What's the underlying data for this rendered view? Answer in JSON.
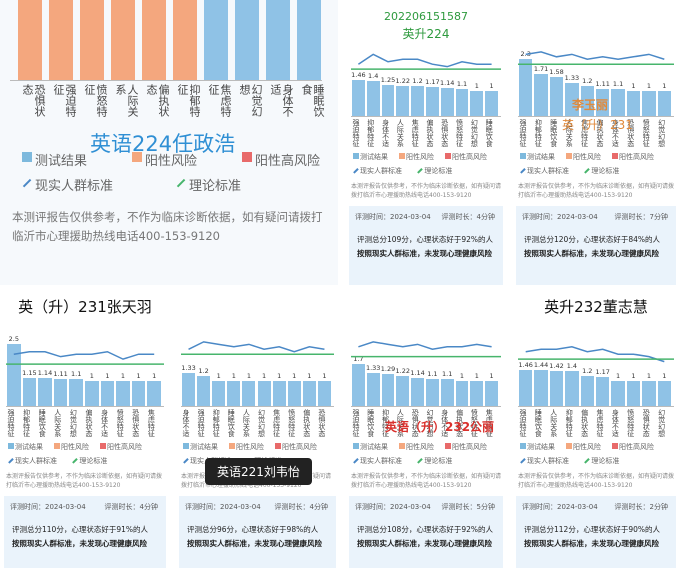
{
  "legend": {
    "result": "测试结果",
    "risk": "阳性风险",
    "high_risk": "阳性高风险",
    "real_norm": "现实人群标准",
    "theory_norm": "理论标准"
  },
  "note": "本测评报告仅供参考，不作为临床诊断依据，如有疑问请拨打临沂市心理援助热线电话400-153-9120",
  "time_label": "评测时间：2024-03-04",
  "no_risk": "按照现实人群标准，未发现心理健康风险",
  "main": {
    "overlay": "英语224任政浩",
    "categories": [
      "恐惧状态",
      "强迫特征",
      "愤怒特征",
      "人际关系",
      "偏执状态",
      "抑郁特征",
      "焦虑特征",
      "幻觉幻想",
      "身体不适",
      "睡眠饮食"
    ]
  },
  "panels": [
    {
      "title": "202206151587",
      "subtitle": "英升224",
      "ylim": [
        0,
        3
      ],
      "categories": [
        "强迫特征",
        "抑郁特征",
        "身体不适",
        "人际关系",
        "焦虑特征",
        "偏执状态",
        "恐惧状态",
        "愤怒特征",
        "幻觉幻想",
        "睡眠饮食"
      ],
      "values": [
        1.46,
        1.4,
        1.25,
        1.22,
        1.2,
        1.17,
        1.14,
        1.1,
        1,
        1
      ],
      "real_norm": [
        2.1,
        2.5,
        2.2,
        2.3,
        2.3,
        2.1,
        2.0,
        2.2,
        2.1,
        2.1
      ],
      "theory_norm": 1.9,
      "duration": "评测时长：4分钟",
      "summary": "评测总分109分，心理状态好于92%的人"
    },
    {
      "overlay": "李玉丽",
      "overlay2": "英（升）231",
      "ylim": [
        0,
        3
      ],
      "categories": [
        "强迫特征",
        "抑郁特征",
        "睡眠饮食",
        "人际关系",
        "焦虑特征",
        "偏执状态",
        "身体不适",
        "恐惧状态",
        "愤怒特征",
        "幻觉幻想"
      ],
      "values": [
        2.3,
        1.71,
        1.58,
        1.33,
        1.2,
        1.11,
        1.1,
        1,
        1,
        1
      ],
      "real_norm": [
        2.5,
        2.6,
        2.4,
        2.5,
        2.3,
        2.4,
        2.3,
        2.4,
        2.5,
        2.3
      ],
      "theory_norm": 2.1,
      "duration": "评测时长：7分钟",
      "summary": "评测总分120分，心理状态好于84%的人"
    },
    {
      "title": "英（升）231张天羽",
      "ylim": [
        0,
        3
      ],
      "categories": [
        "强迫特征",
        "抑郁特征",
        "睡眠饮食",
        "人际关系",
        "幻觉幻想",
        "偏执状态",
        "身体不适",
        "愤怒特征",
        "恐惧状态",
        "焦虑特征"
      ],
      "values": [
        2.5,
        1.15,
        1.14,
        1.11,
        1.1,
        1,
        1,
        1,
        1,
        1
      ],
      "real_norm": [
        2.1,
        2.2,
        2.2,
        2.0,
        2.1,
        2.1,
        2.2,
        1.9,
        2.1,
        2.1
      ],
      "theory_norm": 1.7,
      "duration": "评测时长：4分钟",
      "summary": "评测总分110分，心理状态好于91%的人"
    },
    {
      "tooltip": "英语221刘韦怡",
      "ylim": [
        0,
        3
      ],
      "categories": [
        "身体不适",
        "强迫特征",
        "抑郁特征",
        "睡眠饮食",
        "人际关系",
        "幻觉幻想",
        "焦虑特征",
        "愤怒特征",
        "偏执状态",
        "恐惧状态"
      ],
      "values": [
        1.33,
        1.2,
        1,
        1,
        1,
        1,
        1,
        1,
        1,
        1
      ],
      "real_norm": [
        2.3,
        2.6,
        2.5,
        2.4,
        2.5,
        2.3,
        2.4,
        2.2,
        2.4,
        2.3
      ],
      "theory_norm": 2.1,
      "duration": "评测时长：4分钟",
      "summary": "评测总分96分，心理状态好于98%的人"
    },
    {
      "overlay": "英语（升）232公丽",
      "ylim": [
        0,
        3
      ],
      "categories": [
        "强迫特征",
        "睡眠饮食",
        "抑郁特征",
        "人际关系",
        "恐惧状态",
        "幻觉幻想",
        "身体不适",
        "偏执状态",
        "愤怒特征",
        "焦虑特征"
      ],
      "values": [
        1.7,
        1.33,
        1.29,
        1.22,
        1.14,
        1.1,
        1.1,
        1,
        1,
        1
      ],
      "real_norm": [
        2.4,
        2.6,
        2.5,
        2.4,
        2.5,
        2.3,
        2.4,
        2.4,
        2.5,
        2.4
      ],
      "theory_norm": 2.0,
      "duration": "评测时长：5分钟",
      "summary": "评测总分108分，心理状态好于92%的人"
    },
    {
      "title": "英升232董志慧",
      "ylim": [
        0,
        3
      ],
      "categories": [
        "强迫特征",
        "睡眠饮食",
        "人际关系",
        "抑郁特征",
        "偏执状态",
        "焦虑特征",
        "身体不适",
        "愤怒特征",
        "恐惧状态",
        "幻觉幻想"
      ],
      "values": [
        1.46,
        1.44,
        1.42,
        1.4,
        1.2,
        1.17,
        1,
        1,
        1,
        1
      ],
      "real_norm": [
        2.2,
        2.3,
        2.3,
        2.4,
        2.2,
        2.3,
        2.1,
        2.1,
        2.0,
        1.8
      ],
      "theory_norm": 1.9,
      "duration": "评测时长：2分钟",
      "summary": "评测总分112分，心理状态好于90%的人"
    }
  ]
}
